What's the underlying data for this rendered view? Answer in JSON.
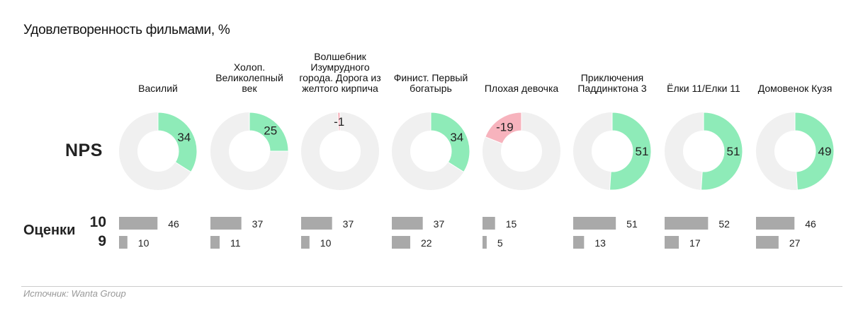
{
  "title": "Удовлетворенность фильмами, %",
  "row_labels": {
    "nps": "NPS",
    "scores": "Оценки",
    "score_10": "10",
    "score_9": "9"
  },
  "source": "Источник: Wanta Group",
  "colors": {
    "positive": "#8eebb8",
    "negative": "#f7b3bd",
    "track": "#f0f0f0",
    "bar": "#a9a9a9"
  },
  "chart_data": {
    "type": "donut+bar",
    "title": "Удовлетворенность фильмами, %",
    "categories": [
      "Василий",
      "Холоп. Великолепный век",
      "Волшебник Изумрудного города. Дорога из желтого кирпича",
      "Финист. Первый богатырь",
      "Плохая девочка",
      "Приключения Паддинктона 3",
      "Ёлки 11/Елки 11",
      "Домовенок Кузя"
    ],
    "title_lines": [
      [
        "Василий"
      ],
      [
        "Холоп.",
        "Великолепный",
        "век"
      ],
      [
        "Волшебник",
        "Изумрудного",
        "города. Дорога из",
        "желтого кирпича"
      ],
      [
        "Финист. Первый",
        "богатырь"
      ],
      [
        "Плохая девочка"
      ],
      [
        "Приключения",
        "Паддинктона 3"
      ],
      [
        "Ёлки 11/Елки 11"
      ],
      [
        "Домовенок Кузя"
      ]
    ],
    "nps": [
      34,
      25,
      -1,
      34,
      -19,
      51,
      51,
      49
    ],
    "series": [
      {
        "name": "10",
        "values": [
          46,
          37,
          37,
          37,
          15,
          51,
          52,
          46
        ]
      },
      {
        "name": "9",
        "values": [
          10,
          11,
          10,
          22,
          5,
          13,
          17,
          27
        ]
      }
    ]
  }
}
